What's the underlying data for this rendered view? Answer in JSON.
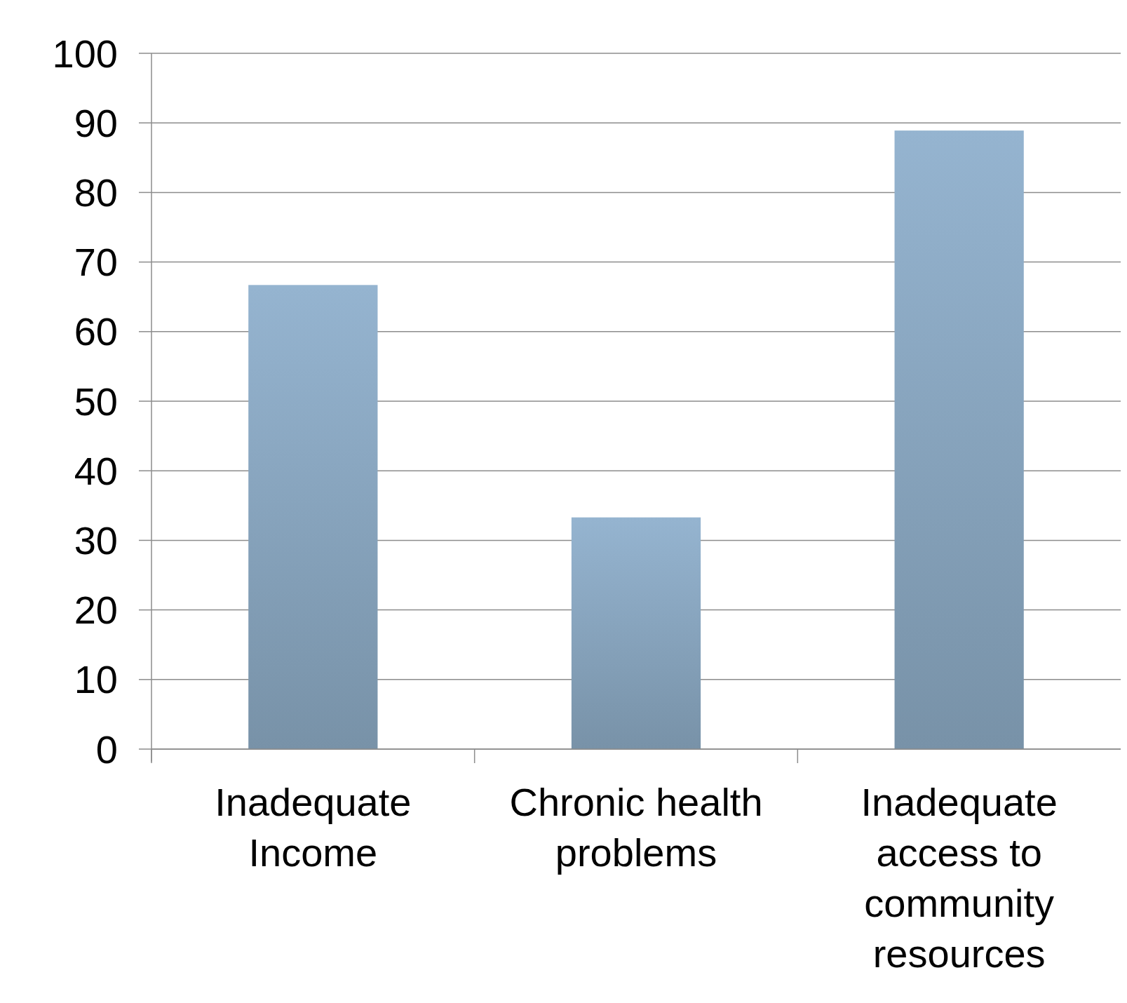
{
  "chart_data": {
    "type": "bar",
    "categories": [
      "Inadequate Income",
      "Chronic health problems",
      "Inadequate access to community resources"
    ],
    "values": [
      66.7,
      33.3,
      88.9
    ],
    "color": "#86a2bb",
    "ylim": [
      0,
      100
    ],
    "yticks": [
      0,
      10,
      20,
      30,
      40,
      50,
      60,
      70,
      80,
      90,
      100
    ],
    "grid": "y"
  }
}
